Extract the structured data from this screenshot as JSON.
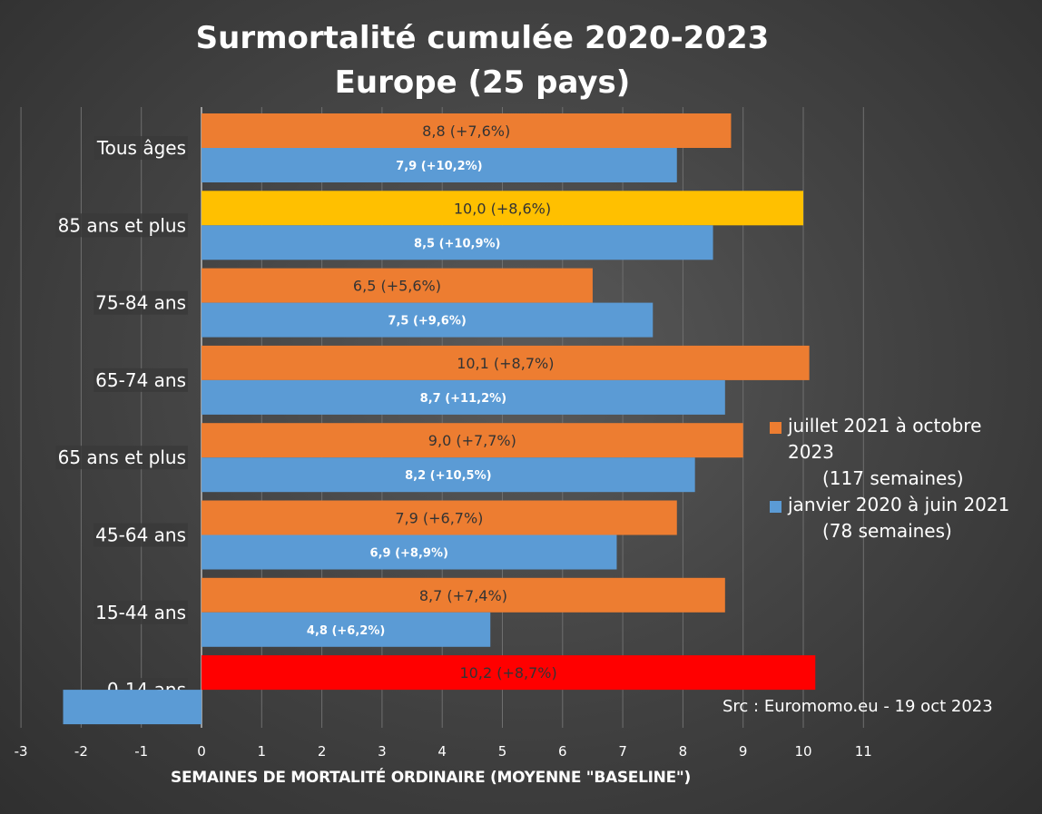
{
  "chart_data": {
    "type": "bar",
    "orientation": "horizontal",
    "title": "Surmortalité cumulée 2020-2023",
    "subtitle": "Europe (25 pays)",
    "xlabel": "SEMAINES DE MORTALITÉ ORDINAIRE (MOYENNE \"BASELINE\")",
    "xlim": [
      -3,
      11
    ],
    "xticks": [
      -3,
      -2,
      -1,
      0,
      1,
      2,
      3,
      4,
      5,
      6,
      7,
      8,
      9,
      10,
      11
    ],
    "grid": true,
    "legend_position": "right",
    "categories": [
      "Tous âges",
      "85 ans et plus",
      "75-84 ans",
      "65-74 ans",
      "65 ans et plus",
      "45-64 ans",
      "15-44 ans",
      "0-14 ans"
    ],
    "series": [
      {
        "name": "juillet 2021 à octobre 2023",
        "name_line2": "(117 semaines)",
        "color": "#ED7D31",
        "values": [
          8.8,
          10.0,
          6.5,
          10.1,
          9.0,
          7.9,
          8.7,
          10.2
        ],
        "labels": [
          "8,8 (+7,6%)",
          "10,0 (+8,6%)",
          "6,5 (+5,6%)",
          "10,1 (+8,7%)",
          "9,0 (+7,7%)",
          "7,9 (+6,7%)",
          "8,7 (+7,4%)",
          "10,2 (+8,7%)"
        ],
        "highlight_colors": [
          null,
          "#FFC000",
          null,
          null,
          null,
          null,
          null,
          "#FF0000"
        ]
      },
      {
        "name": "janvier 2020 à juin 2021",
        "name_line2": "(78 semaines)",
        "color": "#5B9BD5",
        "values": [
          7.9,
          8.5,
          7.5,
          8.7,
          8.2,
          6.9,
          4.8,
          -2.3
        ],
        "labels": [
          "7,9 (+10,2%)",
          "8,5 (+10,9%)",
          "7,5 (+9,6%)",
          "8,7 (+11,2%)",
          "8,2 (+10,5%)",
          "6,9 (+8,9%)",
          "4,8 (+6,2%)",
          ""
        ]
      }
    ]
  },
  "legend": {
    "item1_line1": "juillet 2021 à octobre",
    "item1_line2": "2023",
    "item1_line3": "(117 semaines)",
    "item2_line1": "janvier 2020 à juin 2021",
    "item2_line2": "(78 semaines)"
  },
  "source": "Src : Euromomo.eu  - 19 oct 2023"
}
